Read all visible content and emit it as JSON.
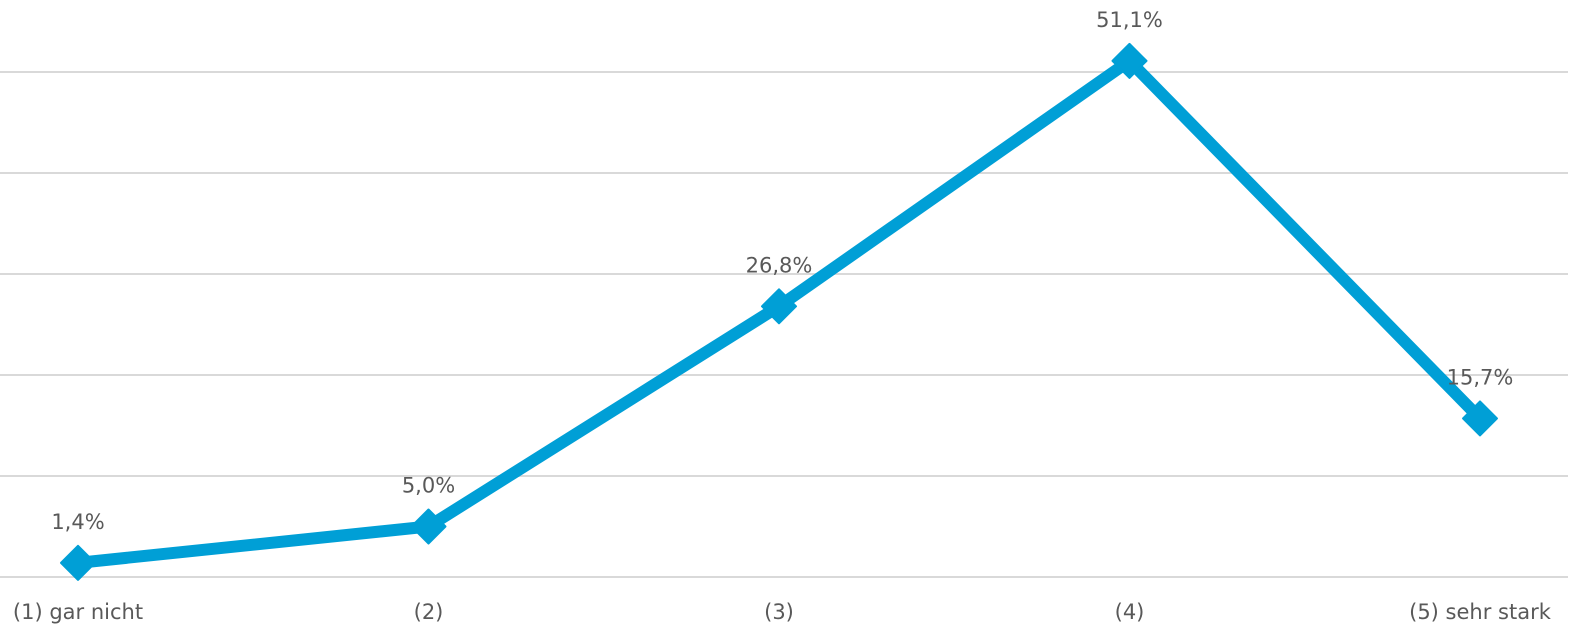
{
  "chart_data": {
    "type": "line",
    "categories": [
      "(1) gar nicht",
      "(2)",
      "(3)",
      "(4)",
      "(5) sehr stark"
    ],
    "series": [
      {
        "color": "#009fd6",
        "values": [
          1.4,
          5.0,
          26.8,
          51.1,
          15.7
        ],
        "value_labels": [
          "1,4%",
          "5,0%",
          "26,8%",
          "51,1%",
          "15,7%"
        ]
      }
    ],
    "ylim": [
      0,
      50
    ],
    "yticks": [
      0,
      10,
      20,
      30,
      40,
      50
    ],
    "grid": true
  }
}
